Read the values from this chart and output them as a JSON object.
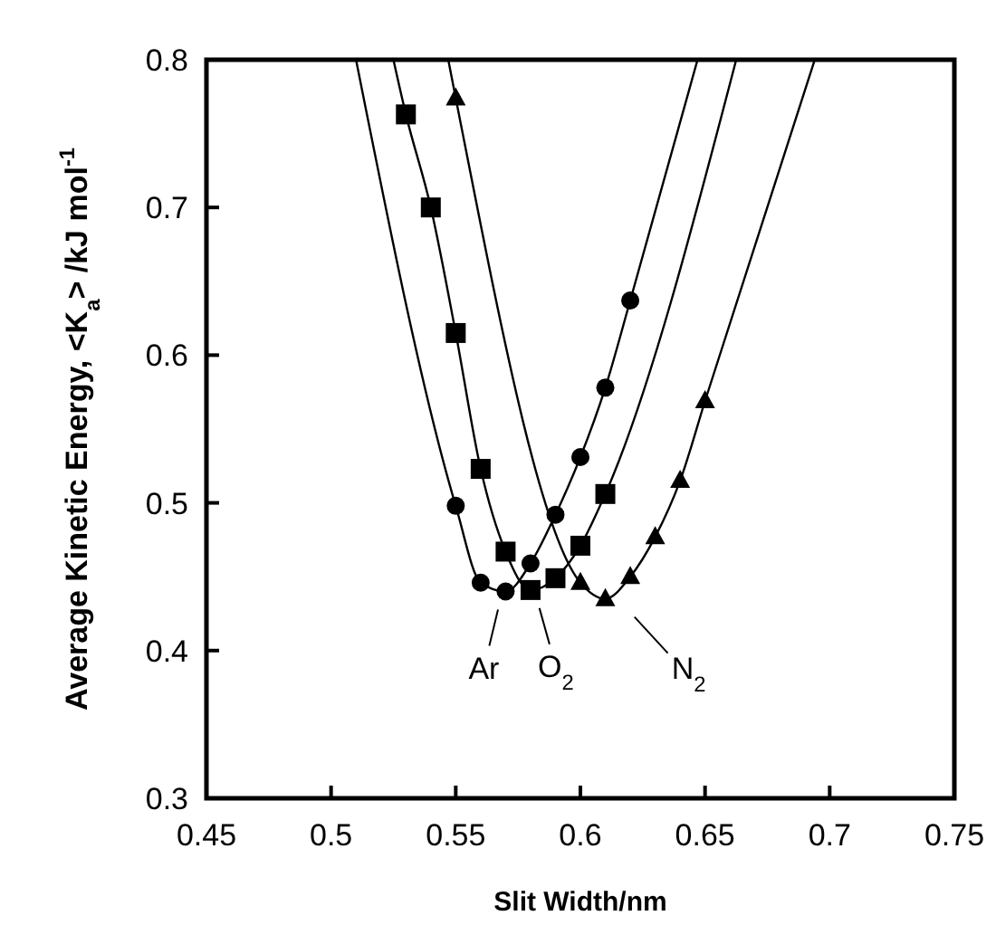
{
  "chart_data": {
    "type": "scatter",
    "xlabel": "Slit Width/nm",
    "ylabel": "Average Kinetic Energy, <K$_{a}$> /kJ mol$^{-1}$",
    "xlim": [
      0.45,
      0.75
    ],
    "xticks": [
      0.45,
      0.5,
      0.55,
      0.6,
      0.65,
      0.7,
      0.75
    ],
    "ylim": [
      0.3,
      0.8
    ],
    "yticks": [
      0.3,
      0.4,
      0.5,
      0.6,
      0.7,
      0.8
    ],
    "grid": false,
    "series": [
      {
        "type": "line",
        "marker": "none",
        "color": "#000000",
        "x": [
          0.51,
          0.55,
          0.56,
          0.57,
          0.58,
          0.59,
          0.6,
          0.61,
          0.62,
          0.647
        ],
        "values": [
          0.8,
          0.498,
          0.446,
          0.44,
          0.459,
          0.492,
          0.531,
          0.578,
          0.637,
          0.8
        ]
      },
      {
        "type": "line",
        "marker": "none",
        "color": "#000000",
        "x": [
          0.525,
          0.53,
          0.54,
          0.55,
          0.56,
          0.57,
          0.58,
          0.59,
          0.6,
          0.61,
          0.6625
        ],
        "values": [
          0.8,
          0.763,
          0.7,
          0.615,
          0.523,
          0.467,
          0.441,
          0.449,
          0.471,
          0.506,
          0.8
        ]
      },
      {
        "type": "line",
        "marker": "none",
        "color": "#000000",
        "x": [
          0.547,
          0.55,
          0.6,
          0.61,
          0.62,
          0.63,
          0.64,
          0.65,
          0.694
        ],
        "values": [
          0.8,
          0.774,
          0.446,
          0.435,
          0.45,
          0.477,
          0.515,
          0.569,
          0.8
        ]
      },
      {
        "marker": "circle",
        "color": "#000000",
        "x": [
          0.55,
          0.56,
          0.57,
          0.58,
          0.59,
          0.6,
          0.61,
          0.62
        ],
        "values": [
          0.498,
          0.446,
          0.44,
          0.459,
          0.492,
          0.531,
          0.578,
          0.637
        ]
      },
      {
        "marker": "square",
        "color": "#000000",
        "x": [
          0.53,
          0.54,
          0.55,
          0.56,
          0.57,
          0.58,
          0.59,
          0.6,
          0.61
        ],
        "values": [
          0.763,
          0.7,
          0.615,
          0.523,
          0.467,
          0.441,
          0.449,
          0.471,
          0.506
        ]
      },
      {
        "marker": "triangle",
        "color": "#000000",
        "x": [
          0.55,
          0.6,
          0.61,
          0.62,
          0.63,
          0.64,
          0.65
        ],
        "values": [
          0.774,
          0.446,
          0.435,
          0.45,
          0.477,
          0.515,
          0.569
        ]
      }
    ],
    "annotations": [
      {
        "text": "Ar",
        "x": 0.57,
        "y": 0.44
      },
      {
        "text": "O$_{2}$",
        "x": 0.58,
        "y": 0.441
      },
      {
        "text": "N$_{2}$",
        "x": 0.61,
        "y": 0.435
      }
    ]
  }
}
